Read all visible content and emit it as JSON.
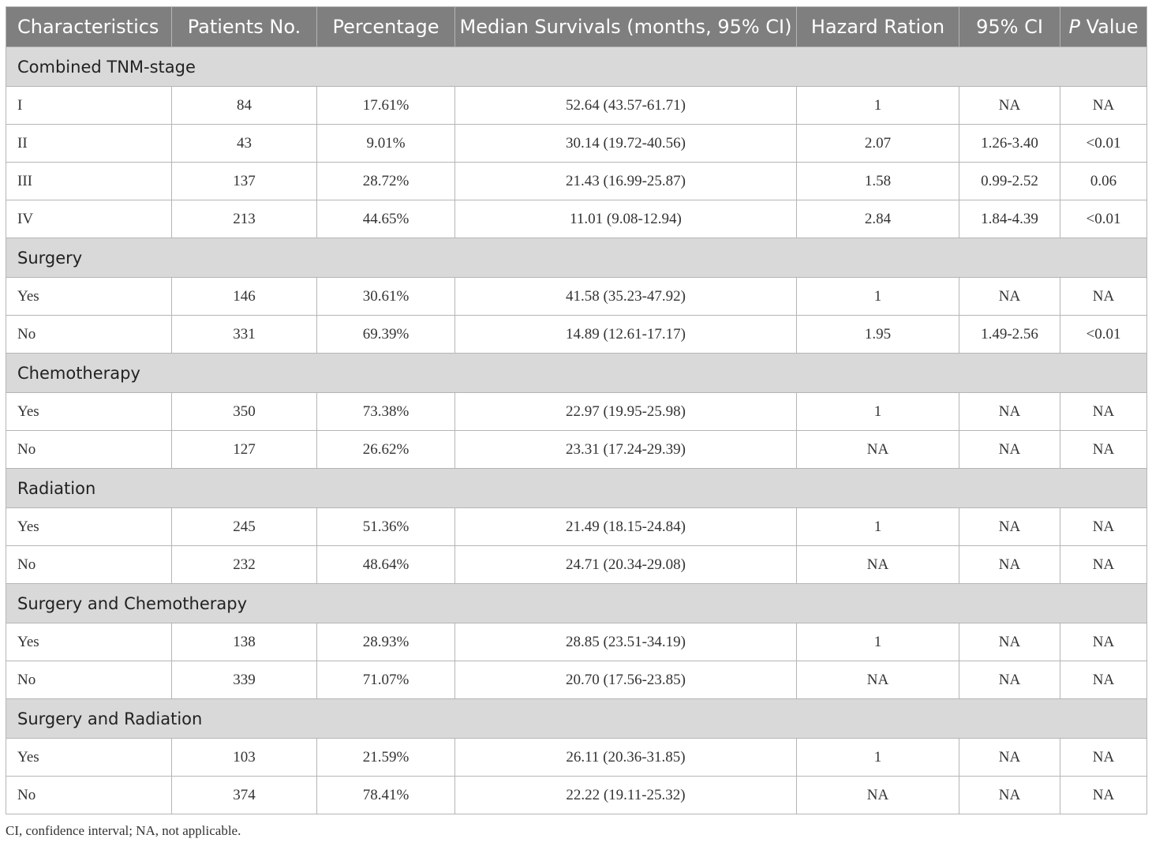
{
  "table": {
    "headers": [
      "Characteristics",
      "Patients No.",
      "Percentage",
      "Median Survivals (months, 95% CI)",
      "Hazard Ration",
      "95% CI",
      "P Value"
    ],
    "header_p_italic": "P",
    "header_p_rest": " Value",
    "sections": [
      {
        "title": "Combined TNM-stage",
        "rows": [
          [
            "I",
            "84",
            "17.61%",
            "52.64 (43.57-61.71)",
            "1",
            "NA",
            "NA"
          ],
          [
            "II",
            "43",
            "9.01%",
            "30.14 (19.72-40.56)",
            "2.07",
            "1.26-3.40",
            "<0.01"
          ],
          [
            "III",
            "137",
            "28.72%",
            "21.43 (16.99-25.87)",
            "1.58",
            "0.99-2.52",
            "0.06"
          ],
          [
            "IV",
            "213",
            "44.65%",
            "11.01 (9.08-12.94)",
            "2.84",
            "1.84-4.39",
            "<0.01"
          ]
        ]
      },
      {
        "title": "Surgery",
        "rows": [
          [
            "Yes",
            "146",
            "30.61%",
            "41.58 (35.23-47.92)",
            "1",
            "NA",
            "NA"
          ],
          [
            "No",
            "331",
            "69.39%",
            "14.89 (12.61-17.17)",
            "1.95",
            "1.49-2.56",
            "<0.01"
          ]
        ]
      },
      {
        "title": "Chemotherapy",
        "rows": [
          [
            "Yes",
            "350",
            "73.38%",
            "22.97 (19.95-25.98)",
            "1",
            "NA",
            "NA"
          ],
          [
            "No",
            "127",
            "26.62%",
            "23.31 (17.24-29.39)",
            "NA",
            "NA",
            "NA"
          ]
        ]
      },
      {
        "title": "Radiation",
        "rows": [
          [
            "Yes",
            "245",
            "51.36%",
            "21.49 (18.15-24.84)",
            "1",
            "NA",
            "NA"
          ],
          [
            "No",
            "232",
            "48.64%",
            "24.71 (20.34-29.08)",
            "NA",
            "NA",
            "NA"
          ]
        ]
      },
      {
        "title": "Surgery and Chemotherapy",
        "rows": [
          [
            "Yes",
            "138",
            "28.93%",
            "28.85 (23.51-34.19)",
            "1",
            "NA",
            "NA"
          ],
          [
            "No",
            "339",
            "71.07%",
            "20.70 (17.56-23.85)",
            "NA",
            "NA",
            "NA"
          ]
        ]
      },
      {
        "title": "Surgery and Radiation",
        "rows": [
          [
            "Yes",
            "103",
            "21.59%",
            "26.11 (20.36-31.85)",
            "1",
            "NA",
            "NA"
          ],
          [
            "No",
            "374",
            "78.41%",
            "22.22 (19.11-25.32)",
            "NA",
            "NA",
            "NA"
          ]
        ]
      }
    ]
  },
  "footnote": "CI, confidence interval; NA, not applicable.",
  "colors": {
    "header_bg": "#7f7f7f",
    "section_bg": "#d9d9d9",
    "border": "#b5b5b5"
  }
}
